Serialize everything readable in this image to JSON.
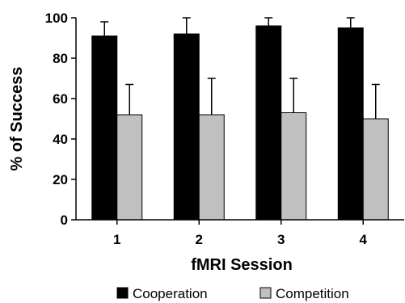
{
  "chart_data": {
    "type": "bar",
    "xlabel": "fMRI Session",
    "ylabel": "% of Success",
    "categories": [
      "1",
      "2",
      "3",
      "4"
    ],
    "ylim": [
      0,
      100
    ],
    "yticks": [
      "0",
      "20",
      "40",
      "60",
      "80",
      "100"
    ],
    "grid": false,
    "legend_position": "bottom",
    "series": [
      {
        "name": "Cooperation",
        "color": "#000000",
        "values": [
          91,
          92,
          96,
          95
        ],
        "error": [
          7,
          8,
          4,
          5
        ]
      },
      {
        "name": "Competition",
        "color": "#c0c0c0",
        "values": [
          52,
          52,
          53,
          50
        ],
        "error": [
          15,
          18,
          17,
          17
        ]
      }
    ]
  }
}
